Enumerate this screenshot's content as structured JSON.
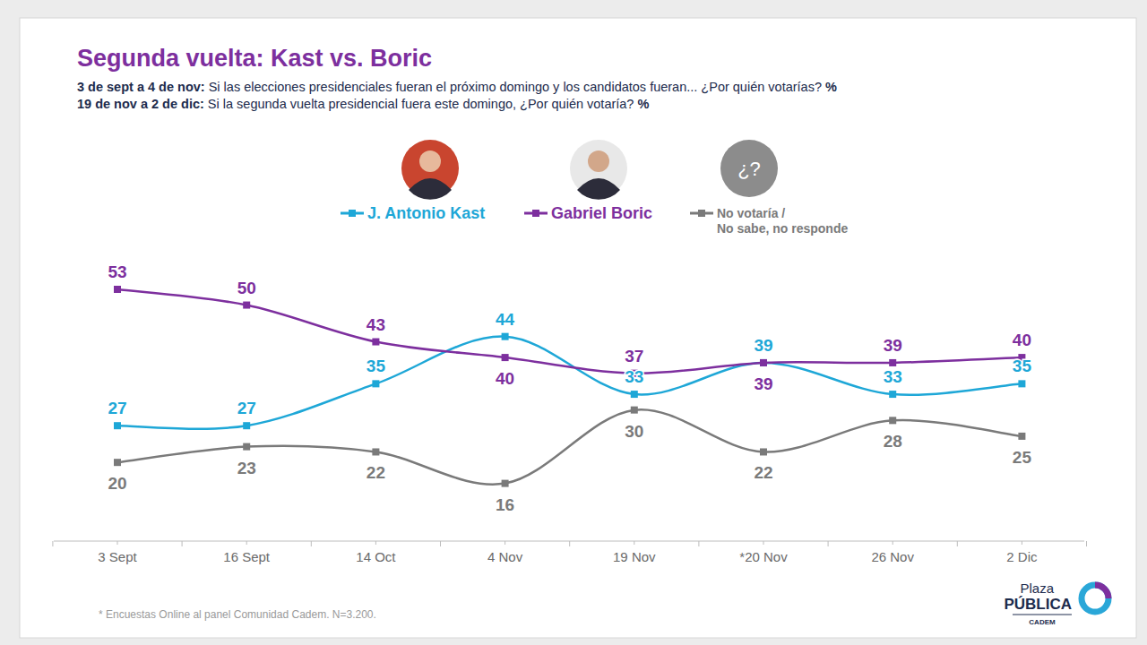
{
  "chart_data": {
    "type": "line",
    "title": "Segunda vuelta: Kast vs. Boric",
    "subtitle": [
      "3 de sept a 4 de nov: Si las elecciones presidenciales fueran el próximo domingo y los candidatos fueran... ¿Por quién votarías? %",
      "19 de nov a 2 de dic: Si la segunda vuelta presidencial fuera este domingo, ¿Por quién votaría? %"
    ],
    "categories": [
      "3 Sept",
      "16 Sept",
      "14 Oct",
      "4 Nov",
      "19 Nov",
      "*20 Nov",
      "26 Nov",
      "2 Dic"
    ],
    "series": [
      {
        "name": "J. Antonio Kast",
        "color": "#1ea7d7",
        "marker": "square",
        "values": [
          27,
          27,
          35,
          44,
          33,
          39,
          33,
          35
        ]
      },
      {
        "name": "Gabriel Boric",
        "color": "#7d2f9e",
        "marker": "square",
        "values": [
          53,
          50,
          43,
          40,
          37,
          39,
          39,
          40
        ]
      },
      {
        "name": "No votaría / No sabe, no responde",
        "color": "#7a7a7a",
        "marker": "square",
        "values": [
          20,
          23,
          22,
          16,
          30,
          22,
          28,
          25
        ]
      }
    ],
    "ylim": [
      5,
      60
    ],
    "grid": false,
    "legend": "top",
    "data_labels": true,
    "tick_labels": "x",
    "unknown_icon": "¿?",
    "footnote": "* Encuestas Online al panel Comunidad Cadem. N=3.200.",
    "logo": [
      "Plaza",
      "PÚBLICA",
      "CADEM"
    ]
  }
}
